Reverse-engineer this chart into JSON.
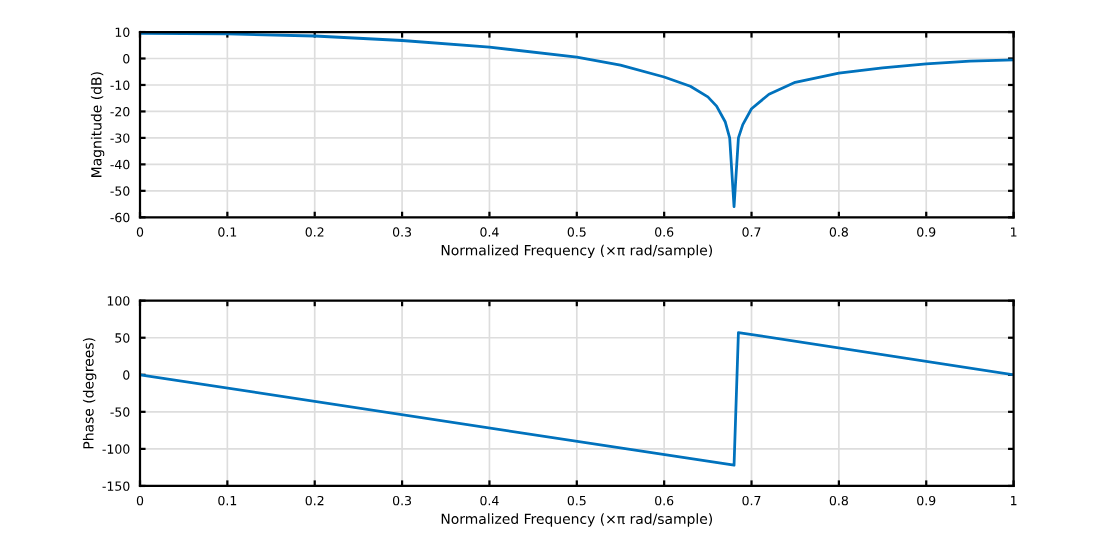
{
  "chart_data": [
    {
      "type": "line",
      "xlabel": "Normalized Frequency (×π rad/sample)",
      "ylabel": "Magnitude (dB)",
      "xlim": [
        0,
        1
      ],
      "xticks": [
        0,
        0.1,
        0.2,
        0.3,
        0.4,
        0.5,
        0.6,
        0.7,
        0.8,
        0.9,
        1
      ],
      "ylim": [
        -60,
        10
      ],
      "yticks": [
        -60,
        -50,
        -40,
        -30,
        -20,
        -10,
        0,
        10
      ],
      "grid": true,
      "x": [
        0,
        0.1,
        0.2,
        0.3,
        0.4,
        0.5,
        0.55,
        0.6,
        0.63,
        0.65,
        0.66,
        0.67,
        0.675,
        0.68,
        0.685,
        0.69,
        0.7,
        0.72,
        0.75,
        0.8,
        0.85,
        0.9,
        0.95,
        1
      ],
      "series": [
        {
          "color": "#0072bd",
          "values": [
            9.5,
            9.3,
            8.5,
            6.8,
            4.3,
            0.5,
            -2.5,
            -7,
            -10.5,
            -14.5,
            -18,
            -24,
            -30,
            -56,
            -30,
            -25,
            -19,
            -13.5,
            -9,
            -5.5,
            -3.5,
            -2,
            -1,
            -0.5
          ]
        }
      ]
    },
    {
      "type": "line",
      "xlabel": "Normalized Frequency (×π rad/sample)",
      "ylabel": "Phase (degrees)",
      "xlim": [
        0,
        1
      ],
      "xticks": [
        0,
        0.1,
        0.2,
        0.3,
        0.4,
        0.5,
        0.6,
        0.7,
        0.8,
        0.9,
        1
      ],
      "ylim": [
        -150,
        100
      ],
      "yticks": [
        -150,
        -100,
        -50,
        0,
        50,
        100
      ],
      "grid": true,
      "x": [
        0,
        0.68,
        0.68,
        0.685,
        1
      ],
      "series": [
        {
          "color": "#0072bd",
          "values": [
            0,
            -122,
            -122,
            57,
            0
          ]
        }
      ]
    }
  ]
}
